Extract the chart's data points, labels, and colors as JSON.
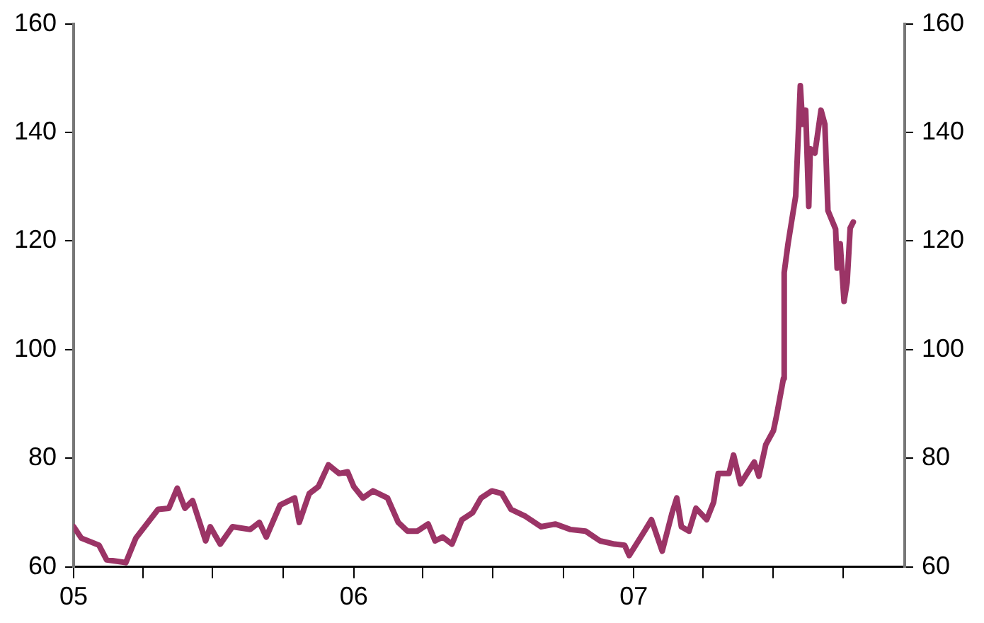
{
  "chart_data": {
    "type": "line",
    "color": "#9b3466",
    "marker": "none",
    "line_style": "solid",
    "legend": false,
    "grid": false,
    "x": [
      "2005-01-01",
      "2005-01-11",
      "2005-02-03",
      "2005-02-13",
      "2005-03-10",
      "2005-03-23",
      "2005-04-21",
      "2005-05-05",
      "2005-05-16",
      "2005-05-26",
      "2005-06-05",
      "2005-06-22",
      "2005-06-28",
      "2005-07-11",
      "2005-07-27",
      "2005-08-19",
      "2005-08-31",
      "2005-09-09",
      "2005-09-27",
      "2005-10-16",
      "2005-10-22",
      "2005-11-04",
      "2005-11-16",
      "2005-11-29",
      "2005-12-13",
      "2005-12-24",
      "2006-01-01",
      "2006-01-13",
      "2006-01-26",
      "2006-02-14",
      "2006-02-28",
      "2006-03-12",
      "2006-03-25",
      "2006-04-08",
      "2006-04-17",
      "2006-04-27",
      "2006-05-09",
      "2006-05-22",
      "2006-06-05",
      "2006-06-16",
      "2006-06-30",
      "2006-07-13",
      "2006-07-25",
      "2006-08-13",
      "2006-09-02",
      "2006-09-21",
      "2006-10-10",
      "2006-10-30",
      "2006-11-18",
      "2006-12-07",
      "2006-12-20",
      "2006-12-26",
      "2007-01-15",
      "2007-01-24",
      "2007-02-07",
      "2007-02-20",
      "2007-02-26",
      "2007-03-04",
      "2007-03-14",
      "2007-03-23",
      "2007-04-06",
      "2007-04-15",
      "2007-04-21",
      "2007-05-05",
      "2007-05-11",
      "2007-05-20",
      "2007-06-07",
      "2007-06-13",
      "2007-06-22",
      "2007-07-02",
      "2007-07-06",
      "2007-07-13",
      "2007-07-15",
      "2007-07-16",
      "2007-07-21",
      "2007-07-27",
      "2007-07-31",
      "2007-08-06",
      "2007-08-09",
      "2007-08-13",
      "2007-08-17",
      "2007-08-19",
      "2007-08-25",
      "2007-09-02",
      "2007-09-07",
      "2007-09-11",
      "2007-09-21",
      "2007-09-23",
      "2007-09-27",
      "2007-10-02",
      "2007-10-06",
      "2007-10-10",
      "2007-10-14"
    ],
    "values": [
      67.4,
      65.3,
      64,
      61.3,
      60.8,
      65.3,
      70.6,
      70.8,
      74.5,
      70.8,
      72.2,
      64.8,
      67.4,
      64.2,
      67.4,
      66.9,
      68.2,
      65.5,
      71.4,
      72.7,
      68.2,
      73.5,
      74.8,
      78.8,
      77.2,
      77.5,
      74.8,
      72.7,
      74,
      72.7,
      68.2,
      66.6,
      66.6,
      67.9,
      64.8,
      65.5,
      64.2,
      68.7,
      70,
      72.7,
      74,
      73.5,
      70.6,
      69.3,
      67.4,
      67.9,
      66.9,
      66.6,
      64.8,
      64.2,
      64,
      62.1,
      66.6,
      68.7,
      62.9,
      70,
      72.7,
      67.4,
      66.6,
      70.8,
      68.7,
      71.9,
      77.2,
      77.2,
      80.6,
      75.3,
      79.3,
      76.7,
      82.5,
      85.1,
      87.8,
      93.1,
      94.7,
      114.2,
      119.5,
      124.8,
      128.3,
      148.6,
      141.5,
      144.1,
      126.4,
      137,
      136.2,
      144.1,
      141.5,
      125.6,
      122.2,
      115,
      119.5,
      108.9,
      112.4,
      122.4,
      123.5
    ],
    "xlim": [
      "2005-01-01",
      "2007-12-20"
    ],
    "xticks": [
      {
        "value": "2005-01-01",
        "label": "05"
      },
      {
        "value": "2005-04-01",
        "label": null
      },
      {
        "value": "2005-07-01",
        "label": null
      },
      {
        "value": "2005-10-01",
        "label": null
      },
      {
        "value": "2006-01-01",
        "label": "06"
      },
      {
        "value": "2006-04-01",
        "label": null
      },
      {
        "value": "2006-07-01",
        "label": null
      },
      {
        "value": "2006-10-01",
        "label": null
      },
      {
        "value": "2007-01-01",
        "label": "07"
      },
      {
        "value": "2007-04-01",
        "label": null
      },
      {
        "value": "2007-07-01",
        "label": null
      },
      {
        "value": "2007-10-01",
        "label": null
      }
    ],
    "ylim": [
      60,
      160
    ],
    "yticks": [
      60,
      80,
      100,
      120,
      140,
      160
    ],
    "y2lim": [
      60,
      160
    ],
    "y2ticks": [
      60,
      80,
      100,
      120,
      140,
      160
    ]
  }
}
